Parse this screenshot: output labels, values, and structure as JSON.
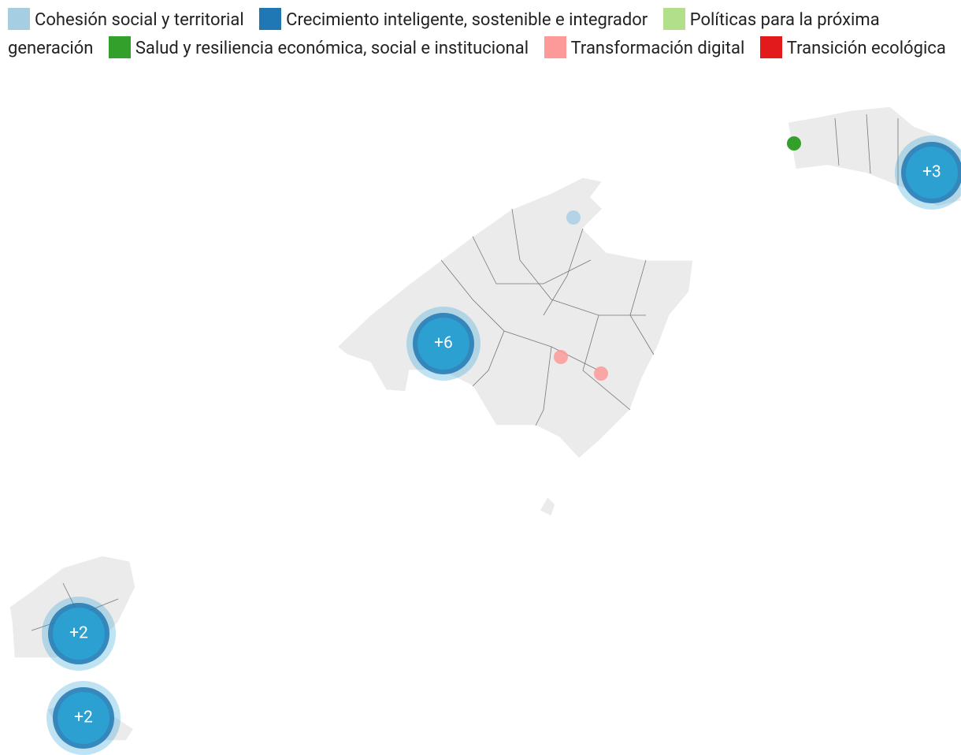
{
  "legend": [
    {
      "label": "Cohesión social y territorial",
      "color": "#a6cee3"
    },
    {
      "label": "Crecimiento inteligente, sostenible e integrador",
      "color": "#1f78b4"
    },
    {
      "label": "Políticas para la próxima generación",
      "color": "#b2df8a"
    },
    {
      "label": "Salud y resiliencia económica, social e institucional",
      "color": "#33a02c"
    },
    {
      "label": "Transformación digital",
      "color": "#fb9a99"
    },
    {
      "label": "Transición ecológica",
      "color": "#e31a1c"
    }
  ],
  "map": {
    "clusters": [
      "+6",
      "+3",
      "+2",
      "+2"
    ],
    "cluster_color": "#2aa3d4",
    "land_color": "#ebebeb"
  }
}
